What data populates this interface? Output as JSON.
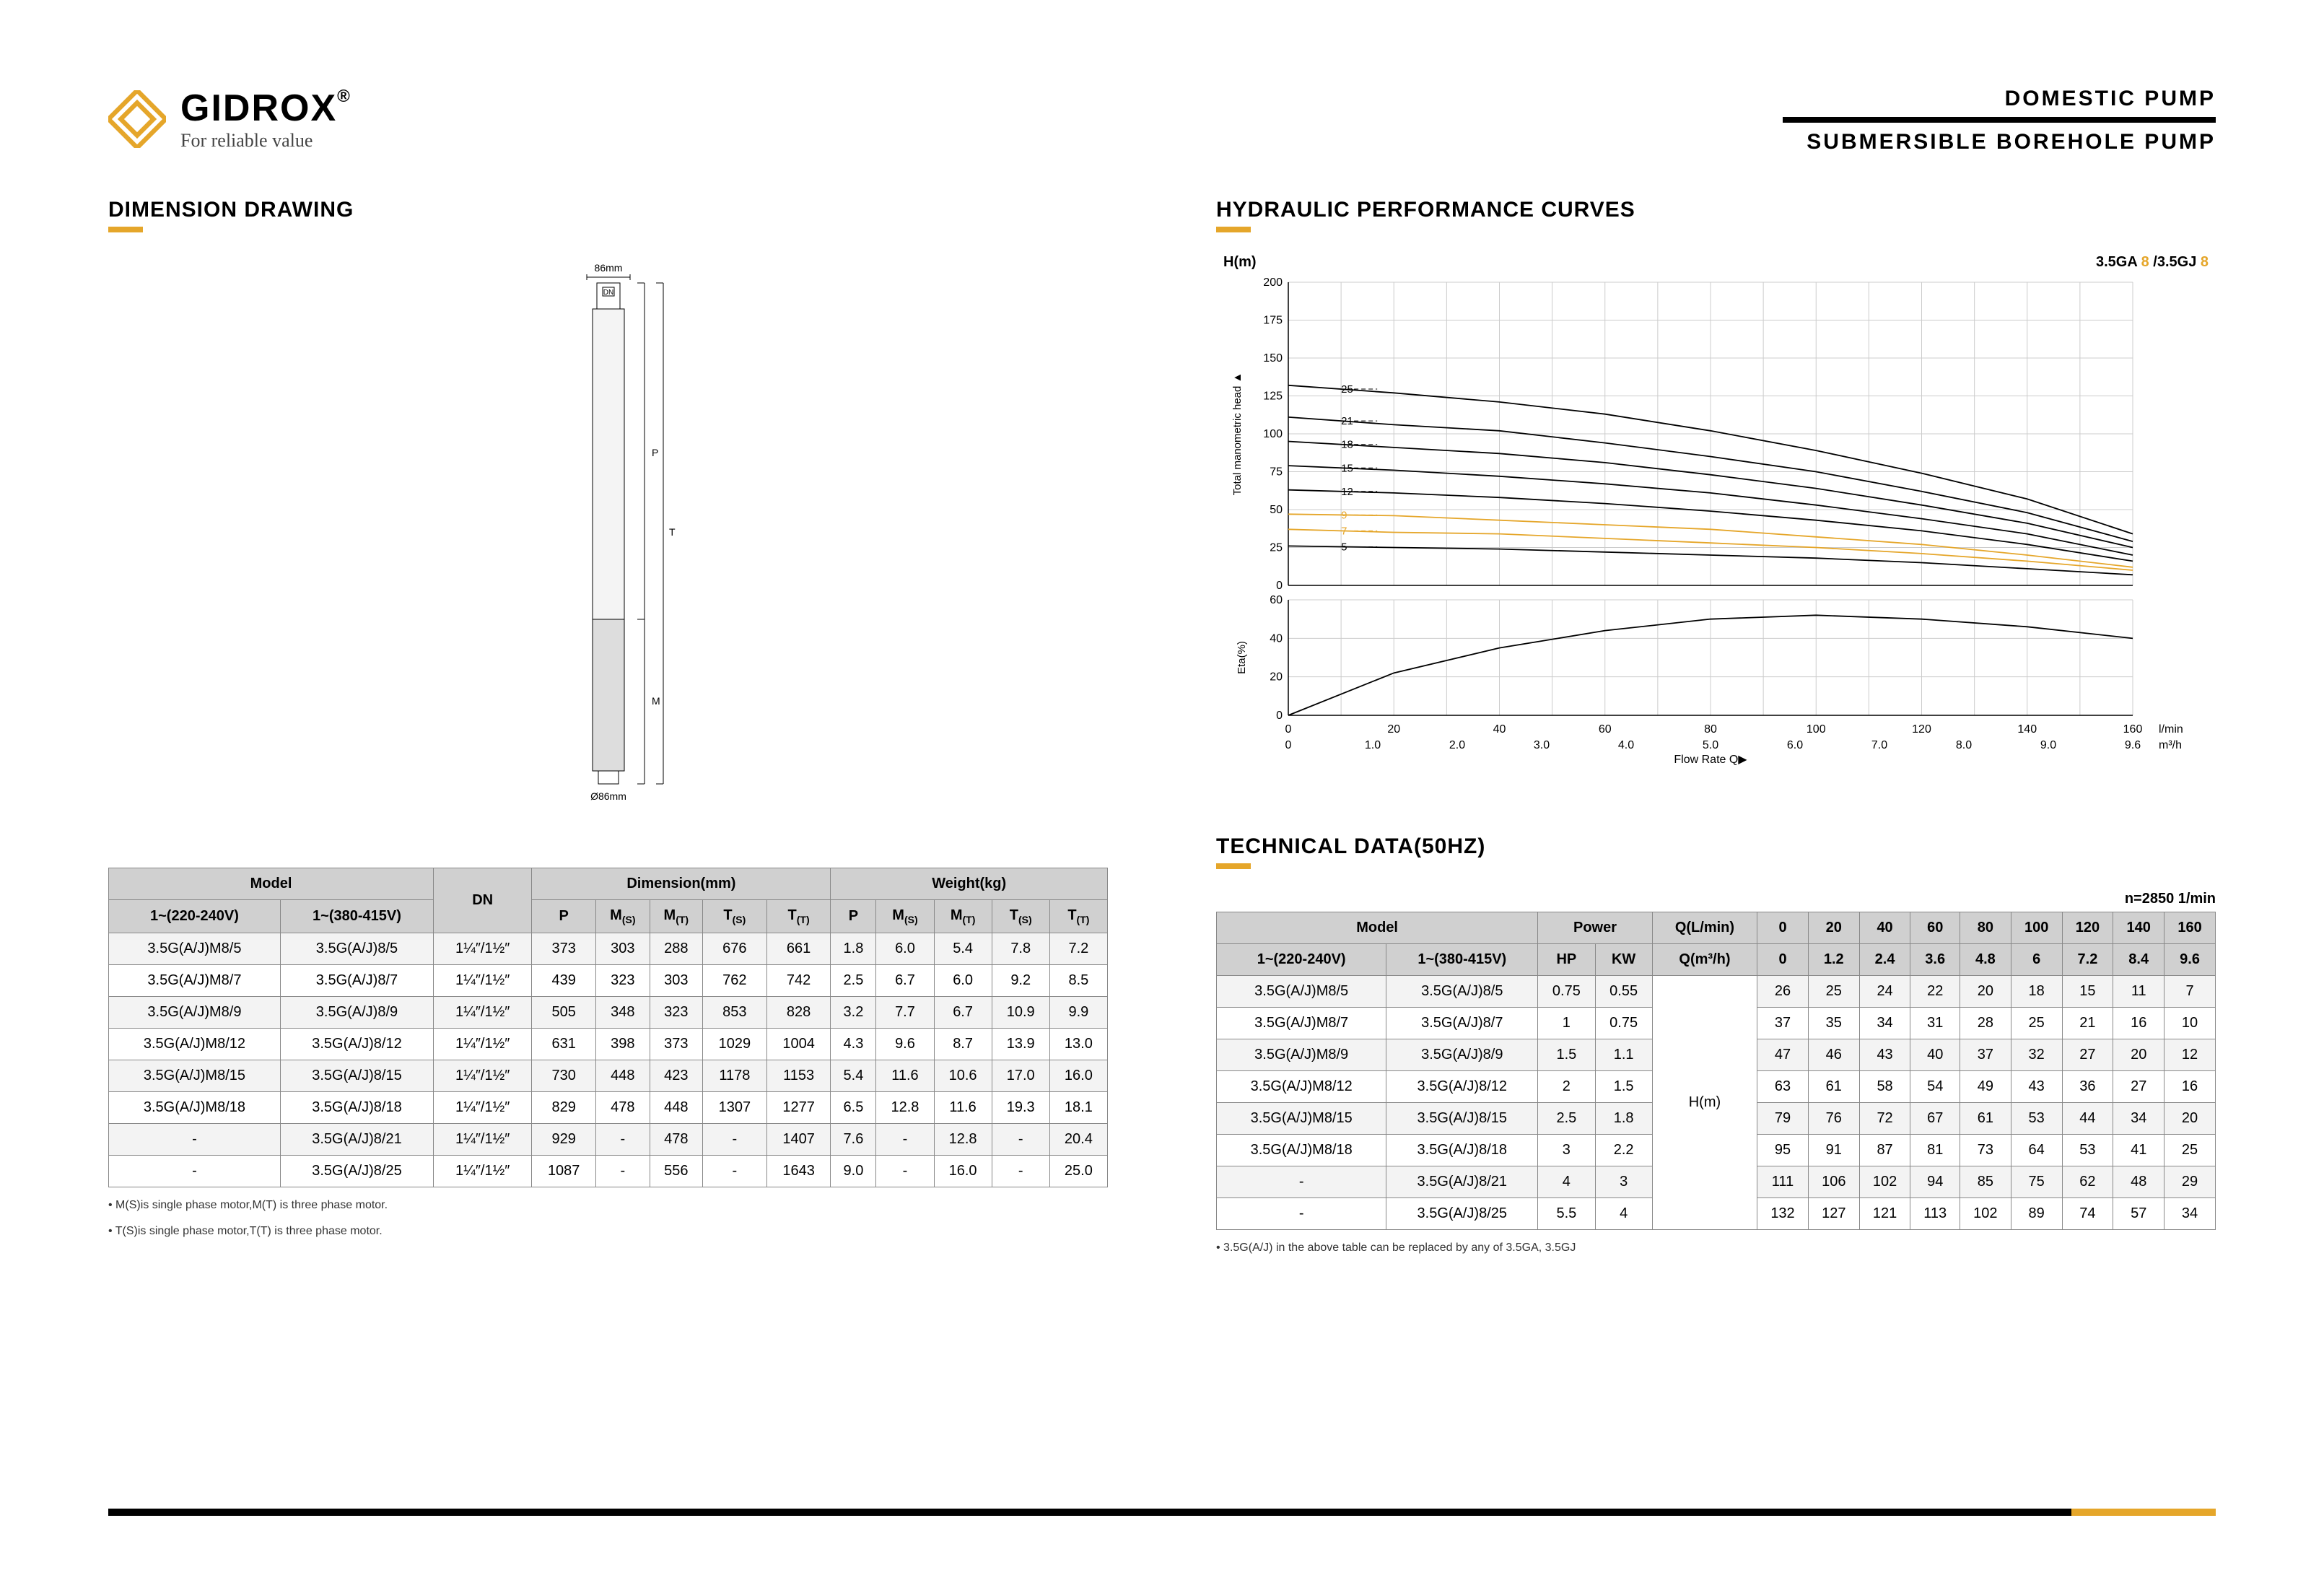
{
  "brand": "GIDROX",
  "brand_reg": "®",
  "tagline": "For reliable value",
  "logo_color": "#e5a62a",
  "header_line1": "DOMESTIC  PUMP",
  "header_line2": "SUBMERSIBLE  BOREHOLE  PUMP",
  "sec_dim": "DIMENSION DRAWING",
  "sec_curves": "HYDRAULIC PERFORMANCE CURVES",
  "sec_tech": "TECHNICAL DATA(50HZ)",
  "rpm_note": "n=2850 1/min",
  "dim_table": {
    "head_model": "Model",
    "head_dn": "DN",
    "head_dim": "Dimension(mm)",
    "head_wt": "Weight(kg)",
    "col_220": "1~(220-240V)",
    "col_380": "1~(380-415V)",
    "c_P": "P",
    "c_MS": "M(S)",
    "c_MT": "M(T)",
    "c_TS": "T(S)",
    "c_TT": "T(T)",
    "rows": [
      [
        "3.5G(A/J)M8/5",
        "3.5G(A/J)8/5",
        "1¼″/1½″",
        "373",
        "303",
        "288",
        "676",
        "661",
        "1.8",
        "6.0",
        "5.4",
        "7.8",
        "7.2"
      ],
      [
        "3.5G(A/J)M8/7",
        "3.5G(A/J)8/7",
        "1¼″/1½″",
        "439",
        "323",
        "303",
        "762",
        "742",
        "2.5",
        "6.7",
        "6.0",
        "9.2",
        "8.5"
      ],
      [
        "3.5G(A/J)M8/9",
        "3.5G(A/J)8/9",
        "1¼″/1½″",
        "505",
        "348",
        "323",
        "853",
        "828",
        "3.2",
        "7.7",
        "6.7",
        "10.9",
        "9.9"
      ],
      [
        "3.5G(A/J)M8/12",
        "3.5G(A/J)8/12",
        "1¼″/1½″",
        "631",
        "398",
        "373",
        "1029",
        "1004",
        "4.3",
        "9.6",
        "8.7",
        "13.9",
        "13.0"
      ],
      [
        "3.5G(A/J)M8/15",
        "3.5G(A/J)8/15",
        "1¼″/1½″",
        "730",
        "448",
        "423",
        "1178",
        "1153",
        "5.4",
        "11.6",
        "10.6",
        "17.0",
        "16.0"
      ],
      [
        "3.5G(A/J)M8/18",
        "3.5G(A/J)8/18",
        "1¼″/1½″",
        "829",
        "478",
        "448",
        "1307",
        "1277",
        "6.5",
        "12.8",
        "11.6",
        "19.3",
        "18.1"
      ],
      [
        "-",
        "3.5G(A/J)8/21",
        "1¼″/1½″",
        "929",
        "-",
        "478",
        "-",
        "1407",
        "7.6",
        "-",
        "12.8",
        "-",
        "20.4"
      ],
      [
        "-",
        "3.5G(A/J)8/25",
        "1¼″/1½″",
        "1087",
        "-",
        "556",
        "-",
        "1643",
        "9.0",
        "-",
        "16.0",
        "-",
        "25.0"
      ]
    ],
    "foot1": "• M(S)is single phase motor,M(T) is three phase motor.",
    "foot2": "• T(S)is single phase motor,T(T) is three phase motor."
  },
  "tech_table": {
    "head_model": "Model",
    "head_power": "Power",
    "head_qlmin": "Q(L/min)",
    "head_qm3h": "Q(m³/h)",
    "col_220": "1~(220-240V)",
    "col_380": "1~(380-415V)",
    "c_HP": "HP",
    "c_KW": "KW",
    "hm": "H(m)",
    "q_lmin": [
      "0",
      "20",
      "40",
      "60",
      "80",
      "100",
      "120",
      "140",
      "160"
    ],
    "q_m3h": [
      "0",
      "1.2",
      "2.4",
      "3.6",
      "4.8",
      "6",
      "7.2",
      "8.4",
      "9.6"
    ],
    "rows": [
      [
        "3.5G(A/J)M8/5",
        "3.5G(A/J)8/5",
        "0.75",
        "0.55",
        "26",
        "25",
        "24",
        "22",
        "20",
        "18",
        "15",
        "11",
        "7"
      ],
      [
        "3.5G(A/J)M8/7",
        "3.5G(A/J)8/7",
        "1",
        "0.75",
        "37",
        "35",
        "34",
        "31",
        "28",
        "25",
        "21",
        "16",
        "10"
      ],
      [
        "3.5G(A/J)M8/9",
        "3.5G(A/J)8/9",
        "1.5",
        "1.1",
        "47",
        "46",
        "43",
        "40",
        "37",
        "32",
        "27",
        "20",
        "12"
      ],
      [
        "3.5G(A/J)M8/12",
        "3.5G(A/J)8/12",
        "2",
        "1.5",
        "63",
        "61",
        "58",
        "54",
        "49",
        "43",
        "36",
        "27",
        "16"
      ],
      [
        "3.5G(A/J)M8/15",
        "3.5G(A/J)8/15",
        "2.5",
        "1.8",
        "79",
        "76",
        "72",
        "67",
        "61",
        "53",
        "44",
        "34",
        "20"
      ],
      [
        "3.5G(A/J)M8/18",
        "3.5G(A/J)8/18",
        "3",
        "2.2",
        "95",
        "91",
        "87",
        "81",
        "73",
        "64",
        "53",
        "41",
        "25"
      ],
      [
        "-",
        "3.5G(A/J)8/21",
        "4",
        "3",
        "111",
        "106",
        "102",
        "94",
        "85",
        "75",
        "62",
        "48",
        "29"
      ],
      [
        "-",
        "3.5G(A/J)8/25",
        "5.5",
        "4",
        "132",
        "127",
        "121",
        "113",
        "102",
        "89",
        "74",
        "57",
        "34"
      ]
    ],
    "foot": "• 3.5G(A/J) in the above table can be replaced by any of 3.5GA, 3.5GJ"
  },
  "chart": {
    "title_left": "H(m)",
    "title_right_a": "3.5GA ",
    "title_right_b": "8",
    "title_right_c": " /3.5GJ ",
    "title_right_d": "8",
    "x_label": "Flow Rate  Q▶",
    "x_unit1": "l/min",
    "x_unit2": "m³/h",
    "y_axis_label": "Total manometric head   ▲",
    "eff_label": "Eta(%)",
    "grid_color": "#ccc",
    "axis_color": "#000",
    "line_color": "#000",
    "gold": "#e5a62a",
    "x_ticks_top": [
      0,
      20,
      40,
      60,
      80,
      100,
      120,
      140,
      160
    ],
    "x_ticks_bot": [
      "0",
      "1.0",
      "2.0",
      "3.0",
      "4.0",
      "5.0",
      "6.0",
      "7.0",
      "8.0",
      "9.0",
      "9.6"
    ],
    "y_ticks_head": [
      0,
      25,
      50,
      75,
      100,
      125,
      150,
      175,
      200
    ],
    "y_ticks_eff": [
      0,
      20,
      40,
      60
    ],
    "curve_labels": [
      "25",
      "21",
      "18",
      "15",
      "12",
      "9",
      "7",
      "5"
    ],
    "curves": [
      [
        [
          0,
          132
        ],
        [
          20,
          127
        ],
        [
          40,
          121
        ],
        [
          60,
          113
        ],
        [
          80,
          102
        ],
        [
          100,
          89
        ],
        [
          120,
          74
        ],
        [
          140,
          57
        ],
        [
          160,
          34
        ]
      ],
      [
        [
          0,
          111
        ],
        [
          20,
          106
        ],
        [
          40,
          102
        ],
        [
          60,
          94
        ],
        [
          80,
          85
        ],
        [
          100,
          75
        ],
        [
          120,
          62
        ],
        [
          140,
          48
        ],
        [
          160,
          29
        ]
      ],
      [
        [
          0,
          95
        ],
        [
          20,
          91
        ],
        [
          40,
          87
        ],
        [
          60,
          81
        ],
        [
          80,
          73
        ],
        [
          100,
          64
        ],
        [
          120,
          53
        ],
        [
          140,
          41
        ],
        [
          160,
          25
        ]
      ],
      [
        [
          0,
          79
        ],
        [
          20,
          76
        ],
        [
          40,
          72
        ],
        [
          60,
          67
        ],
        [
          80,
          61
        ],
        [
          100,
          53
        ],
        [
          120,
          44
        ],
        [
          140,
          34
        ],
        [
          160,
          20
        ]
      ],
      [
        [
          0,
          63
        ],
        [
          20,
          61
        ],
        [
          40,
          58
        ],
        [
          60,
          54
        ],
        [
          80,
          49
        ],
        [
          100,
          43
        ],
        [
          120,
          36
        ],
        [
          140,
          27
        ],
        [
          160,
          16
        ]
      ],
      [
        [
          0,
          47
        ],
        [
          20,
          46
        ],
        [
          40,
          43
        ],
        [
          60,
          40
        ],
        [
          80,
          37
        ],
        [
          100,
          32
        ],
        [
          120,
          27
        ],
        [
          140,
          20
        ],
        [
          160,
          12
        ]
      ],
      [
        [
          0,
          37
        ],
        [
          20,
          35
        ],
        [
          40,
          34
        ],
        [
          60,
          31
        ],
        [
          80,
          28
        ],
        [
          100,
          25
        ],
        [
          120,
          21
        ],
        [
          140,
          16
        ],
        [
          160,
          10
        ]
      ],
      [
        [
          0,
          26
        ],
        [
          20,
          25
        ],
        [
          40,
          24
        ],
        [
          60,
          22
        ],
        [
          80,
          20
        ],
        [
          100,
          18
        ],
        [
          120,
          15
        ],
        [
          140,
          11
        ],
        [
          160,
          7
        ]
      ]
    ],
    "gold_curves": [
      5,
      6
    ],
    "eff_curve": [
      [
        0,
        0
      ],
      [
        20,
        22
      ],
      [
        40,
        35
      ],
      [
        60,
        44
      ],
      [
        80,
        50
      ],
      [
        100,
        52
      ],
      [
        120,
        50
      ],
      [
        140,
        46
      ],
      [
        160,
        40
      ]
    ]
  }
}
